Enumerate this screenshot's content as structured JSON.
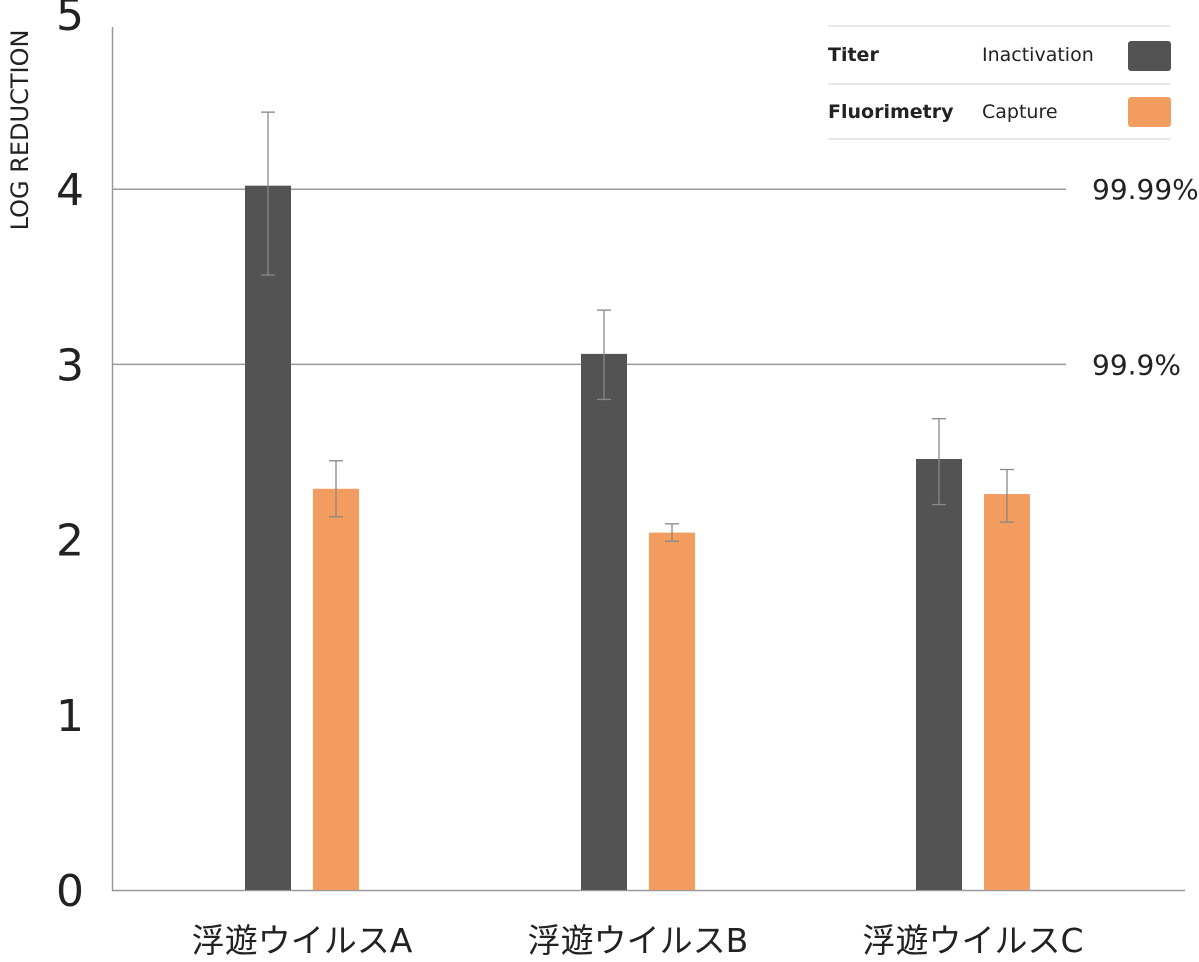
{
  "chart_data": {
    "type": "bar",
    "ylabel": "LOG REDUCTION",
    "ylim": [
      0,
      5
    ],
    "y_ticks": [
      "0",
      "1",
      "2",
      "3",
      "4",
      "5"
    ],
    "categories": [
      "浮遊ウイルスA",
      "浮遊ウイルスB",
      "浮遊ウイルスC"
    ],
    "series": [
      {
        "name": "Titer",
        "description": "Inactivation",
        "color": "#535353",
        "values": [
          4.02,
          3.06,
          2.46
        ],
        "error_low": [
          3.51,
          2.8,
          2.2
        ],
        "error_high": [
          4.44,
          3.31,
          2.69
        ]
      },
      {
        "name": "Fluorimetry",
        "description": "Capture",
        "color": "#F29C5F",
        "values": [
          2.29,
          2.04,
          2.26
        ],
        "error_low": [
          2.13,
          1.99,
          2.1
        ],
        "error_high": [
          2.45,
          2.09,
          2.4
        ]
      }
    ],
    "reference_lines": [
      {
        "y": 4,
        "label": "99.99%"
      },
      {
        "y": 3,
        "label": "99.9%"
      }
    ],
    "grid": false,
    "legend_position": "top-right"
  }
}
